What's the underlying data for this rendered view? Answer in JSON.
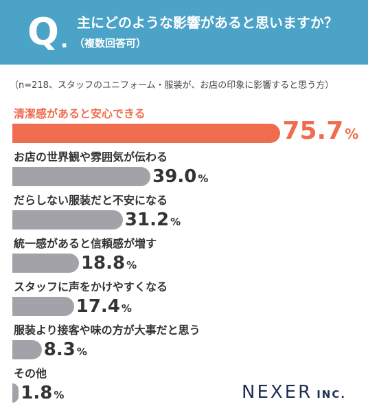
{
  "header": {
    "q_mark": "Q",
    "q_dot": ".",
    "question": "主にどのような影響があると思いますか？",
    "sub": "（複数回答可）"
  },
  "note": "（n=218、スタッフのユニフォーム・服装が、お店の印象に影響すると思う方）",
  "chart_data": {
    "type": "bar",
    "orientation": "horizontal",
    "unit": "%",
    "xlim": [
      0,
      100
    ],
    "categories": [
      "清潔感があると安心できる",
      "お店の世界観や雰囲気が伝わる",
      "だらしない服装だと不安になる",
      "統一感があると信頼感が増す",
      "スタッフに声をかけやすくなる",
      "服装より接客や味の方が大事だと思う",
      "その他"
    ],
    "values": [
      75.7,
      39.0,
      31.2,
      18.8,
      17.4,
      8.3,
      1.8
    ],
    "value_labels": [
      "75.7",
      "39.0",
      "31.2",
      "18.8",
      "17.4",
      "8.3",
      "1.8"
    ],
    "highlight_index": 0,
    "colors": {
      "highlight": "#ef6c4f",
      "default": "#a2a2a8"
    }
  },
  "logo": {
    "main": "NEXER",
    "suffix": "INC."
  },
  "colors": {
    "header_bg": "#4ba3c8",
    "brand": "#1f2f54"
  }
}
